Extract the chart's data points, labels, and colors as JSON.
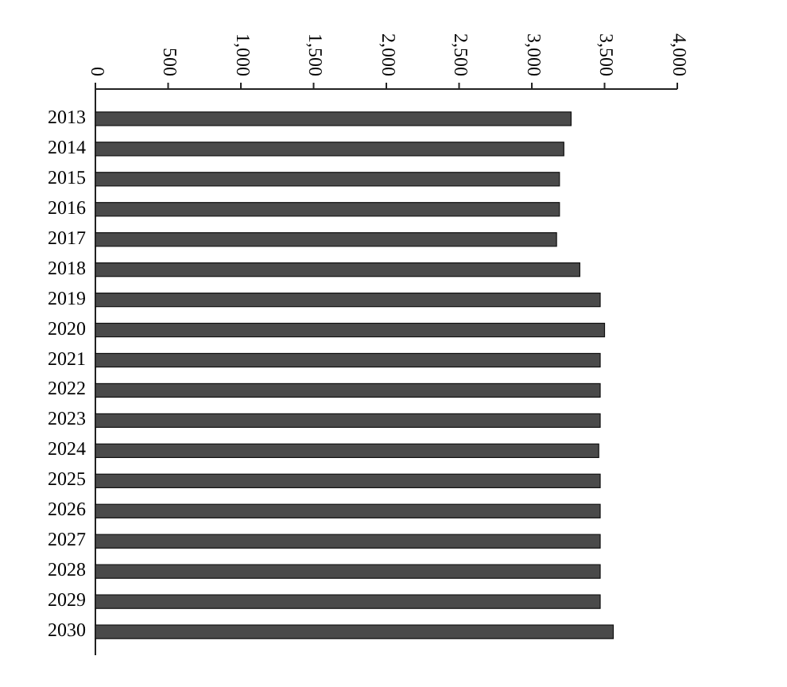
{
  "chart_data": {
    "type": "bar",
    "orientation": "horizontal",
    "categories": [
      "2013",
      "2014",
      "2015",
      "2016",
      "2017",
      "2018",
      "2019",
      "2020",
      "2021",
      "2022",
      "2023",
      "2024",
      "2025",
      "2026",
      "2027",
      "2028",
      "2029",
      "2030"
    ],
    "values": [
      3270,
      3220,
      3190,
      3190,
      3170,
      3330,
      3470,
      3500,
      3470,
      3470,
      3470,
      3460,
      3470,
      3470,
      3470,
      3470,
      3470,
      3560
    ],
    "color": "#4a4a4a",
    "xlim": [
      0,
      4000
    ],
    "xticks": [
      0,
      500,
      {
        "value": 1000,
        "label": "1,000"
      },
      {
        "value": 1500,
        "label": "1,500"
      },
      {
        "value": 2000,
        "label": "2,000"
      },
      {
        "value": 2500,
        "label": "2,500"
      },
      {
        "value": 3000,
        "label": "3,000"
      },
      {
        "value": 3500,
        "label": "3,500"
      },
      {
        "value": 4000,
        "label": "4,000"
      }
    ],
    "grid": false
  }
}
